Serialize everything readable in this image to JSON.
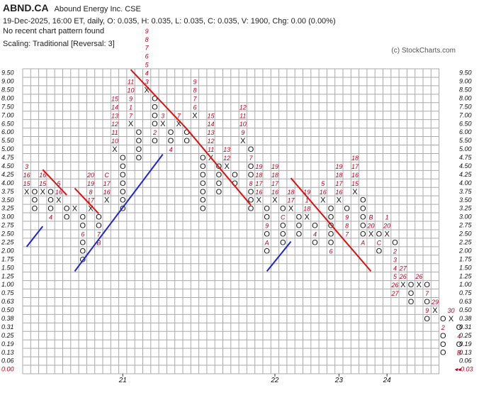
{
  "header": {
    "ticker": "ABND.CA",
    "name": "Abound Energy Inc.  CSE",
    "quote": "19-Dec-2025, 16:00 ET, daily, O: 0.035, H: 0.035, L: 0.035, C: 0.035, V: 1900, Chg: 0.00 (0.00%)",
    "pattern": "No recent chart pattern found",
    "scaling": "Scaling: Traditional [Reversal: 3]",
    "copyright": "(c) StockCharts.com"
  },
  "chart_data": {
    "type": "point-and-figure",
    "box_levels": [
      "9.50",
      "9.00",
      "8.50",
      "8.00",
      "7.50",
      "7.00",
      "6.50",
      "6.00",
      "5.50",
      "5.00",
      "4.75",
      "4.50",
      "4.25",
      "4.00",
      "3.75",
      "3.50",
      "3.25",
      "3.00",
      "2.75",
      "2.50",
      "2.25",
      "2.00",
      "1.75",
      "1.50",
      "1.25",
      "1.00",
      "0.75",
      "0.63",
      "0.50",
      "0.38",
      "0.31",
      "0.25",
      "0.19",
      "0.13",
      "0.06",
      "0.00"
    ],
    "last_price_label": "0.03",
    "year_labels": [
      {
        "label": "21",
        "col": 12
      },
      {
        "label": "22",
        "col": 31
      },
      {
        "label": "23",
        "col": 39
      },
      {
        "label": "24",
        "col": 45
      }
    ],
    "columns": [
      {
        "type": "X",
        "cells": [
          "14",
          "15",
          "16",
          "3"
        ]
      },
      {
        "type": "O",
        "cells": [
          "14",
          "15",
          "16"
        ]
      },
      {
        "type": "X",
        "cells": [
          "14",
          "15",
          "16"
        ]
      },
      {
        "type": "O",
        "cells": [
          "14",
          "15",
          "16",
          "4"
        ]
      },
      {
        "type": "X",
        "cells": [
          "15",
          "16",
          "5"
        ]
      },
      {
        "type": "O",
        "cells": [
          "16",
          "17"
        ]
      },
      {
        "type": "X",
        "cells": [
          "16"
        ]
      },
      {
        "type": "O",
        "cells": [
          "17",
          "18",
          "6",
          "20",
          "21",
          "22"
        ]
      },
      {
        "type": "X",
        "cells": [
          "16",
          "17",
          "8",
          "19",
          "20"
        ]
      },
      {
        "type": "O",
        "cells": [
          "17",
          "18",
          "7",
          "B"
        ]
      },
      {
        "type": "X",
        "cells": [
          "15",
          "16",
          "17",
          "C"
        ]
      },
      {
        "type": "X",
        "cells": [
          "9",
          "10",
          "11",
          "12",
          "13",
          "14",
          "15"
        ]
      },
      {
        "type": "O",
        "cells": [
          "10",
          "11",
          "12",
          "13",
          "14",
          "15",
          "16"
        ]
      },
      {
        "type": "X",
        "cells": [
          "6",
          "7",
          "1",
          "9",
          "10",
          "11"
        ]
      },
      {
        "type": "O",
        "cells": [
          "7",
          "8",
          "9",
          "10"
        ]
      },
      {
        "type": "X",
        "cells": [
          "2",
          "3",
          "4",
          "5",
          "6",
          "7",
          "8",
          "9"
        ]
      },
      {
        "type": "O",
        "cells": [
          "3",
          "4",
          "5",
          "6",
          "2",
          "8"
        ]
      },
      {
        "type": "X",
        "cells": [
          "6",
          "3"
        ]
      },
      {
        "type": "O",
        "cells": [
          "7",
          "8",
          "4"
        ]
      },
      {
        "type": "X",
        "cells": [
          "6",
          "7"
        ]
      },
      {
        "type": "O",
        "cells": [
          "7",
          "8"
        ]
      },
      {
        "type": "X",
        "cells": [
          "5",
          "6",
          "7",
          "8",
          "9"
        ]
      },
      {
        "type": "O",
        "cells": [
          "10",
          "11",
          "12",
          "13",
          "14",
          "15",
          "16"
        ]
      },
      {
        "type": "X",
        "cells": [
          "10",
          "11",
          "12",
          "13",
          "14",
          "15"
        ]
      },
      {
        "type": "O",
        "cells": [
          "11",
          "12",
          "13",
          "14"
        ]
      },
      {
        "type": "X",
        "cells": [
          "11",
          "12",
          "13"
        ]
      },
      {
        "type": "O",
        "cells": [
          "12",
          "13"
        ]
      },
      {
        "type": "X",
        "cells": [
          "8",
          "9",
          "10",
          "11",
          "12"
        ]
      },
      {
        "type": "O",
        "cells": [
          "9",
          "7",
          "11",
          "12",
          "8",
          "14",
          "15",
          "16"
        ]
      },
      {
        "type": "X",
        "cells": [
          "15",
          "16",
          "17",
          "18",
          "19"
        ]
      },
      {
        "type": "O",
        "cells": [
          "16",
          "17",
          "9",
          "19",
          "A",
          "21"
        ]
      },
      {
        "type": "X",
        "cells": [
          "15",
          "16",
          "17",
          "18",
          "19"
        ]
      },
      {
        "type": "O",
        "cells": [
          "16",
          "C",
          "18",
          "19",
          "20"
        ]
      },
      {
        "type": "X",
        "cells": [
          "16",
          "17",
          "18"
        ]
      },
      {
        "type": "O",
        "cells": [
          "17",
          "18",
          "19"
        ]
      },
      {
        "type": "X",
        "cells": [
          "17",
          "18",
          "1",
          "19"
        ]
      },
      {
        "type": "O",
        "cells": [
          "18",
          "4",
          "20"
        ]
      },
      {
        "type": "X",
        "cells": [
          "15",
          "16",
          "5"
        ]
      },
      {
        "type": "O",
        "cells": [
          "16",
          "17",
          "18",
          "19",
          "20",
          "6"
        ]
      },
      {
        "type": "X",
        "cells": [
          "15",
          "16",
          "17",
          "18",
          "19"
        ]
      },
      {
        "type": "O",
        "cells": [
          "16",
          "9",
          "8",
          "7"
        ]
      },
      {
        "type": "X",
        "cells": [
          "14",
          "15",
          "16",
          "17",
          "18"
        ]
      },
      {
        "type": "O",
        "cells": [
          "15",
          "16",
          "17",
          "18",
          "19",
          "A"
        ]
      },
      {
        "type": "X",
        "cells": [
          "19",
          "20",
          "B"
        ]
      },
      {
        "type": "O",
        "cells": [
          "19",
          "C",
          "21"
        ]
      },
      {
        "type": "X",
        "cells": [
          "19",
          "20",
          "1"
        ]
      },
      {
        "type": "O",
        "cells": [
          "20",
          "2",
          "3",
          "4",
          "5",
          "26",
          "27"
        ]
      },
      {
        "type": "X",
        "cells": [
          "25",
          "26",
          "27"
        ]
      },
      {
        "type": "O",
        "cells": [
          "25",
          "26",
          "27"
        ]
      },
      {
        "type": "X",
        "cells": [
          "25",
          "26"
        ]
      },
      {
        "type": "O",
        "cells": [
          "25",
          "7",
          "27",
          "9",
          "29"
        ]
      },
      {
        "type": "X",
        "cells": [
          "28",
          "29"
        ]
      },
      {
        "type": "O",
        "cells": [
          "29",
          "2",
          "31",
          "32",
          "33"
        ]
      },
      {
        "type": "X",
        "cells": [
          "29",
          "30"
        ]
      },
      {
        "type": "O",
        "cells": [
          "30",
          "4",
          "32",
          "B"
        ]
      }
    ],
    "trendlines": [
      {
        "color": "#1f24d6",
        "from": [
          0,
          21.0
        ],
        "to": [
          2,
          18.6
        ]
      },
      {
        "color": "#e01010",
        "from": [
          2,
          11.9
        ],
        "to": [
          5,
          14.9
        ]
      },
      {
        "color": "#e01010",
        "from": [
          6,
          14.1
        ],
        "to": [
          9,
          17.1
        ]
      },
      {
        "color": "#1f24d6",
        "from": [
          6,
          23.9
        ],
        "to": [
          17,
          10.1
        ]
      },
      {
        "color": "#e01010",
        "from": [
          13,
          0.1
        ],
        "to": [
          20,
          7.1
        ]
      },
      {
        "color": "#e01010",
        "from": [
          20,
          7.1
        ],
        "to": [
          28,
          16.1
        ]
      },
      {
        "color": "#1f24d6",
        "from": [
          30,
          23.9
        ],
        "to": [
          33,
          20.4
        ]
      },
      {
        "color": "#e01010",
        "from": [
          33,
          12.9
        ],
        "to": [
          43,
          23.9
        ]
      }
    ],
    "xlabel": "",
    "ylabel": ""
  }
}
